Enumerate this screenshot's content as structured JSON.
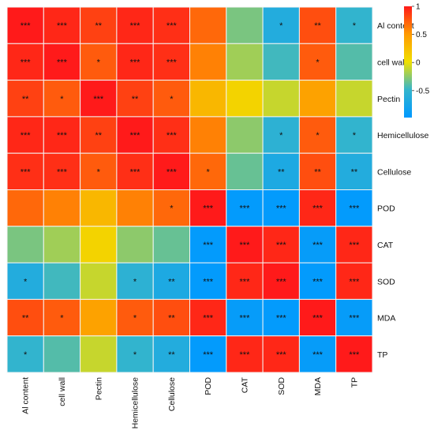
{
  "chart_data": {
    "type": "heatmap",
    "row_labels": [
      "Al content",
      "cell wall",
      "Pectin",
      "Hemicellulose",
      "Cellulose",
      "POD",
      "CAT",
      "SOD",
      "MDA",
      "TP"
    ],
    "col_labels": [
      "Al content",
      "cell wall",
      "Pectin",
      "Hemicellulose",
      "Cellulose",
      "POD",
      "CAT",
      "SOD",
      "MDA",
      "TP"
    ],
    "values": [
      [
        1.0,
        0.95,
        0.85,
        0.95,
        0.92,
        0.7,
        -0.3,
        -0.65,
        0.8,
        -0.5
      ],
      [
        0.95,
        1.0,
        0.75,
        0.95,
        0.92,
        0.6,
        -0.2,
        -0.45,
        0.75,
        -0.4
      ],
      [
        0.85,
        0.75,
        1.0,
        0.85,
        0.75,
        0.3,
        0.1,
        -0.1,
        0.45,
        -0.1
      ],
      [
        0.95,
        0.95,
        0.85,
        1.0,
        0.92,
        0.6,
        -0.25,
        -0.55,
        0.75,
        -0.5
      ],
      [
        0.92,
        0.92,
        0.75,
        0.92,
        1.0,
        0.7,
        -0.35,
        -0.7,
        0.8,
        -0.65
      ],
      [
        0.7,
        0.6,
        0.3,
        0.6,
        0.7,
        1.0,
        -0.95,
        -0.95,
        0.95,
        -0.95
      ],
      [
        -0.3,
        -0.2,
        0.1,
        -0.25,
        -0.35,
        -0.95,
        1.0,
        0.95,
        -0.92,
        0.95
      ],
      [
        -0.65,
        -0.45,
        -0.1,
        -0.55,
        -0.7,
        -0.95,
        0.95,
        1.0,
        -0.95,
        0.95
      ],
      [
        0.8,
        0.75,
        0.45,
        0.75,
        0.8,
        0.95,
        -0.92,
        -0.95,
        1.0,
        -0.92
      ],
      [
        -0.5,
        -0.4,
        -0.1,
        -0.5,
        -0.65,
        -0.95,
        0.95,
        0.95,
        -0.92,
        1.0
      ]
    ],
    "significance": [
      [
        "***",
        "***",
        "**",
        "***",
        "***",
        "",
        "",
        "*",
        "**",
        "*"
      ],
      [
        "***",
        "***",
        "*",
        "***",
        "***",
        "",
        "",
        "",
        "*",
        ""
      ],
      [
        "**",
        "*",
        "***",
        "**",
        "*",
        "",
        "",
        "",
        "",
        ""
      ],
      [
        "***",
        "***",
        "**",
        "***",
        "***",
        "",
        "",
        "*",
        "*",
        "*"
      ],
      [
        "***",
        "***",
        "*",
        "***",
        "***",
        "*",
        "",
        "**",
        "**",
        "**"
      ],
      [
        "",
        "",
        "",
        "",
        "*",
        "***",
        "***",
        "***",
        "***",
        "***"
      ],
      [
        "",
        "",
        "",
        "",
        "",
        "***",
        "***",
        "***",
        "***",
        "***"
      ],
      [
        "*",
        "",
        "",
        "*",
        "**",
        "***",
        "***",
        "***",
        "***",
        "***"
      ],
      [
        "**",
        "*",
        "",
        "*",
        "**",
        "***",
        "***",
        "***",
        "***",
        "***"
      ],
      [
        "*",
        "",
        "",
        "*",
        "**",
        "***",
        "***",
        "***",
        "***",
        "***"
      ]
    ],
    "colorbar": {
      "ticks": [
        1,
        0.5,
        0,
        -0.5
      ],
      "tick_labels": [
        "1",
        "0.5",
        "0",
        "-0.5"
      ],
      "range": [
        -0.98,
        1.0
      ],
      "colors": [
        "#0099FF",
        "#34B5CC",
        "#F0E000",
        "#FF9A00",
        "#FF1A1A"
      ]
    },
    "legend": "right"
  }
}
